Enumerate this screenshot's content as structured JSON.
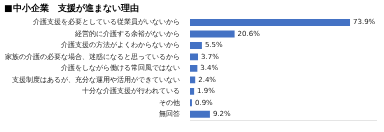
{
  "chart_data": {
    "type": "bar",
    "orientation": "horizontal",
    "title": "■中小企業　支援が進まない理由",
    "categories": [
      "介護支援を必要としている従業員がいないから",
      "経営的に介護する余裕がないから",
      "介護支援の方法がよくわからないから",
      "家族の介護の必要な場合、迷惑になると思っているから",
      "介護をしながら働ける常回風ではない",
      "支援制度はあるが、充分な運用や活用ができていない",
      "十分な介護支援が行われている",
      "その他",
      "無回答"
    ],
    "values": [
      73.9,
      20.6,
      5.5,
      3.7,
      3.4,
      2.4,
      1.9,
      0.9,
      9.2
    ],
    "value_labels": [
      "73.9%",
      "20.6%",
      "5.5%",
      "3.7%",
      "3.4%",
      "2.4%",
      "1.9%",
      "0.9%",
      "9.2%"
    ],
    "color": "#4472c4",
    "xlim": [
      0,
      85.9
    ],
    "grid": false,
    "data_labels": true,
    "tick_labels": "y"
  }
}
